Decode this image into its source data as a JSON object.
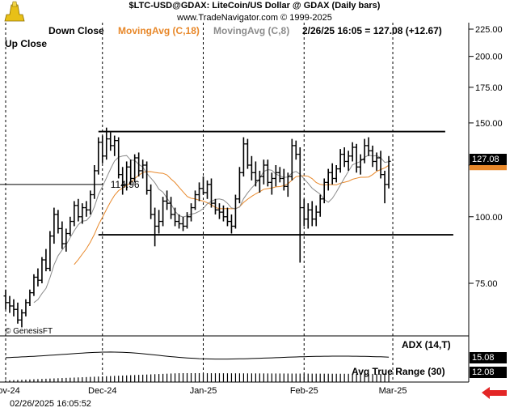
{
  "header": {
    "title": "$LTC-USD@GDAX:  LiteCoin/US Dollar @ GDAX  (Daily bars)",
    "credit": "www.TradeNavigator.com © 1999-2025",
    "legend": [
      {
        "label": "Down Close",
        "color": "#000000"
      },
      {
        "label": "MovingAvg (C,18)",
        "color": "#e8882a"
      },
      {
        "label": "MovingAvg (C,8)",
        "color": "#8c8c8c"
      }
    ],
    "quote": "2/26/25 16:05 = 127.08 (+12.67)",
    "up_close_label": "Up Close"
  },
  "indicators": {
    "adx_label": "ADX (14,T)",
    "adx_value": "15.08",
    "atr_label": "Avg True Range (30)",
    "atr_value": "12.08"
  },
  "footer": {
    "genesis": "© GenesisFT",
    "timestamp": "02/26/2025 16:05:52"
  },
  "price_badges": {
    "last_price": "127.08",
    "last_price_color": "#000000",
    "ma_color": "#e8882a"
  },
  "chart_data": {
    "type": "ohlc",
    "scale": "log",
    "y_ticks": [
      225,
      200,
      175,
      150,
      125,
      100,
      75
    ],
    "y_tick_labels": [
      "225.00",
      "200.00",
      "175.00",
      "150.00",
      "125.00",
      "100.00",
      "75.00"
    ],
    "x_month_labels": [
      "Nov-24",
      "Dec-24",
      "Jan-25",
      "Feb-25",
      "Mar-25"
    ],
    "annotation": "114.96",
    "horizontal_lines": [
      {
        "level": 144.5,
        "from_index": 23,
        "to_index": 109
      },
      {
        "level": 92.5,
        "from_index": 23,
        "to_index": 111
      },
      {
        "level": 114.96,
        "from_index": 0,
        "to_index": 20
      }
    ],
    "bars": [
      {
        "o": 71,
        "h": 73,
        "l": 67,
        "c": 69
      },
      {
        "o": 69,
        "h": 71,
        "l": 66,
        "c": 68
      },
      {
        "o": 68,
        "h": 70,
        "l": 65,
        "c": 67
      },
      {
        "o": 67,
        "h": 69,
        "l": 63,
        "c": 64
      },
      {
        "o": 64,
        "h": 67,
        "l": 62,
        "c": 66
      },
      {
        "o": 66,
        "h": 70,
        "l": 65,
        "c": 69
      },
      {
        "o": 69,
        "h": 73,
        "l": 68,
        "c": 72
      },
      {
        "o": 72,
        "h": 78,
        "l": 71,
        "c": 77
      },
      {
        "o": 77,
        "h": 80,
        "l": 74,
        "c": 76
      },
      {
        "o": 76,
        "h": 84,
        "l": 75,
        "c": 83
      },
      {
        "o": 83,
        "h": 87,
        "l": 79,
        "c": 80
      },
      {
        "o": 80,
        "h": 94,
        "l": 79,
        "c": 92
      },
      {
        "o": 92,
        "h": 104,
        "l": 89,
        "c": 101
      },
      {
        "o": 101,
        "h": 103,
        "l": 93,
        "c": 95
      },
      {
        "o": 95,
        "h": 98,
        "l": 87,
        "c": 89
      },
      {
        "o": 89,
        "h": 95,
        "l": 86,
        "c": 93
      },
      {
        "o": 93,
        "h": 100,
        "l": 92,
        "c": 98
      },
      {
        "o": 98,
        "h": 107,
        "l": 96,
        "c": 105
      },
      {
        "o": 105,
        "h": 108,
        "l": 98,
        "c": 100
      },
      {
        "o": 100,
        "h": 106,
        "l": 97,
        "c": 104
      },
      {
        "o": 104,
        "h": 107,
        "l": 100,
        "c": 103
      },
      {
        "o": 103,
        "h": 112,
        "l": 101,
        "c": 110
      },
      {
        "o": 110,
        "h": 125,
        "l": 108,
        "c": 122
      },
      {
        "o": 122,
        "h": 141,
        "l": 120,
        "c": 138
      },
      {
        "o": 138,
        "h": 142,
        "l": 126,
        "c": 130
      },
      {
        "o": 130,
        "h": 147,
        "l": 128,
        "c": 140
      },
      {
        "o": 140,
        "h": 144,
        "l": 133,
        "c": 136
      },
      {
        "o": 136,
        "h": 142,
        "l": 130,
        "c": 139
      },
      {
        "o": 139,
        "h": 141,
        "l": 118,
        "c": 120
      },
      {
        "o": 120,
        "h": 124,
        "l": 110,
        "c": 115
      },
      {
        "o": 115,
        "h": 127,
        "l": 112,
        "c": 124
      },
      {
        "o": 124,
        "h": 128,
        "l": 115,
        "c": 118
      },
      {
        "o": 118,
        "h": 131,
        "l": 116,
        "c": 129
      },
      {
        "o": 129,
        "h": 132,
        "l": 119,
        "c": 122
      },
      {
        "o": 122,
        "h": 128,
        "l": 118,
        "c": 125
      },
      {
        "o": 125,
        "h": 127,
        "l": 110,
        "c": 112
      },
      {
        "o": 112,
        "h": 115,
        "l": 99,
        "c": 101
      },
      {
        "o": 101,
        "h": 104,
        "l": 88,
        "c": 96
      },
      {
        "o": 96,
        "h": 103,
        "l": 93,
        "c": 98
      },
      {
        "o": 98,
        "h": 109,
        "l": 96,
        "c": 107
      },
      {
        "o": 107,
        "h": 112,
        "l": 103,
        "c": 106
      },
      {
        "o": 106,
        "h": 109,
        "l": 99,
        "c": 101
      },
      {
        "o": 101,
        "h": 104,
        "l": 96,
        "c": 98
      },
      {
        "o": 98,
        "h": 101,
        "l": 95,
        "c": 97
      },
      {
        "o": 97,
        "h": 100,
        "l": 94,
        "c": 96
      },
      {
        "o": 96,
        "h": 102,
        "l": 95,
        "c": 100
      },
      {
        "o": 100,
        "h": 106,
        "l": 98,
        "c": 104
      },
      {
        "o": 104,
        "h": 112,
        "l": 103,
        "c": 110
      },
      {
        "o": 110,
        "h": 116,
        "l": 107,
        "c": 113
      },
      {
        "o": 113,
        "h": 119,
        "l": 110,
        "c": 111
      },
      {
        "o": 111,
        "h": 117,
        "l": 108,
        "c": 115
      },
      {
        "o": 115,
        "h": 118,
        "l": 104,
        "c": 106
      },
      {
        "o": 106,
        "h": 108,
        "l": 101,
        "c": 103
      },
      {
        "o": 103,
        "h": 106,
        "l": 99,
        "c": 102
      },
      {
        "o": 102,
        "h": 105,
        "l": 98,
        "c": 100
      },
      {
        "o": 100,
        "h": 104,
        "l": 96,
        "c": 98
      },
      {
        "o": 98,
        "h": 101,
        "l": 93,
        "c": 96
      },
      {
        "o": 96,
        "h": 110,
        "l": 95,
        "c": 108
      },
      {
        "o": 108,
        "h": 124,
        "l": 106,
        "c": 121
      },
      {
        "o": 121,
        "h": 141,
        "l": 119,
        "c": 137
      },
      {
        "o": 137,
        "h": 140,
        "l": 123,
        "c": 125
      },
      {
        "o": 125,
        "h": 130,
        "l": 117,
        "c": 121
      },
      {
        "o": 121,
        "h": 127,
        "l": 114,
        "c": 117
      },
      {
        "o": 117,
        "h": 122,
        "l": 111,
        "c": 119
      },
      {
        "o": 119,
        "h": 128,
        "l": 115,
        "c": 125
      },
      {
        "o": 125,
        "h": 128,
        "l": 114,
        "c": 116
      },
      {
        "o": 116,
        "h": 121,
        "l": 110,
        "c": 118
      },
      {
        "o": 118,
        "h": 125,
        "l": 114,
        "c": 121
      },
      {
        "o": 121,
        "h": 124,
        "l": 116,
        "c": 118
      },
      {
        "o": 118,
        "h": 123,
        "l": 112,
        "c": 114
      },
      {
        "o": 114,
        "h": 121,
        "l": 109,
        "c": 119
      },
      {
        "o": 119,
        "h": 140,
        "l": 117,
        "c": 136
      },
      {
        "o": 136,
        "h": 139,
        "l": 128,
        "c": 131
      },
      {
        "o": 131,
        "h": 135,
        "l": 82,
        "c": 104
      },
      {
        "o": 104,
        "h": 108,
        "l": 96,
        "c": 99
      },
      {
        "o": 99,
        "h": 106,
        "l": 95,
        "c": 103
      },
      {
        "o": 103,
        "h": 107,
        "l": 96,
        "c": 99
      },
      {
        "o": 99,
        "h": 105,
        "l": 96,
        "c": 102
      },
      {
        "o": 102,
        "h": 110,
        "l": 100,
        "c": 108
      },
      {
        "o": 108,
        "h": 118,
        "l": 106,
        "c": 116
      },
      {
        "o": 116,
        "h": 123,
        "l": 112,
        "c": 121
      },
      {
        "o": 121,
        "h": 126,
        "l": 115,
        "c": 118
      },
      {
        "o": 118,
        "h": 125,
        "l": 116,
        "c": 123
      },
      {
        "o": 123,
        "h": 134,
        "l": 121,
        "c": 131
      },
      {
        "o": 131,
        "h": 135,
        "l": 124,
        "c": 127
      },
      {
        "o": 127,
        "h": 133,
        "l": 122,
        "c": 130
      },
      {
        "o": 130,
        "h": 138,
        "l": 127,
        "c": 135
      },
      {
        "o": 135,
        "h": 137,
        "l": 121,
        "c": 124
      },
      {
        "o": 124,
        "h": 131,
        "l": 120,
        "c": 128
      },
      {
        "o": 128,
        "h": 140,
        "l": 126,
        "c": 136
      },
      {
        "o": 136,
        "h": 141,
        "l": 130,
        "c": 133
      },
      {
        "o": 133,
        "h": 136,
        "l": 124,
        "c": 127
      },
      {
        "o": 127,
        "h": 132,
        "l": 122,
        "c": 129
      },
      {
        "o": 129,
        "h": 133,
        "l": 118,
        "c": 120
      },
      {
        "o": 120,
        "h": 122,
        "l": 106,
        "c": 115
      },
      {
        "o": 115,
        "h": 130,
        "l": 113,
        "c": 127.08
      }
    ],
    "ma_periods": {
      "orange": 18,
      "gray": 8
    },
    "atr_values": [
      12.3,
      12.2,
      12.1,
      12.0,
      12.0,
      12.1,
      12.1
    ]
  }
}
